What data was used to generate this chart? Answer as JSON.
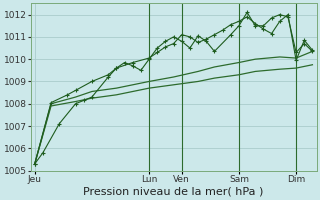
{
  "background_color": "#cce8ea",
  "grid_color": "#aacccc",
  "line_color_dark": "#1e5c1e",
  "line_color_med": "#2d6b2d",
  "ylim": [
    1005,
    1012.5
  ],
  "yticks": [
    1005,
    1006,
    1007,
    1008,
    1009,
    1010,
    1011,
    1012
  ],
  "xlabel": "Pression niveau de la mer( hPa )",
  "xlabel_fontsize": 8,
  "tick_fontsize": 6.5,
  "x_day_labels": [
    "Jeu",
    "Lun",
    "Ven",
    "Sam",
    "Dim"
  ],
  "x_day_positions": [
    0,
    14,
    18,
    25,
    32
  ],
  "vline_positions": [
    14,
    18,
    25,
    32
  ],
  "n_points": 35,
  "series1_x": [
    0,
    1,
    3,
    5,
    6,
    7,
    9,
    10,
    11,
    12,
    13,
    14,
    15,
    16,
    17,
    18,
    19,
    20,
    21,
    22,
    24,
    25,
    26,
    27,
    28,
    29,
    30,
    31,
    32,
    33,
    34
  ],
  "series1_y": [
    1005.3,
    1005.8,
    1007.1,
    1008.0,
    1008.15,
    1008.3,
    1009.2,
    1009.6,
    1009.85,
    1009.7,
    1009.5,
    1010.0,
    1010.5,
    1010.8,
    1011.0,
    1010.8,
    1010.5,
    1011.05,
    1010.8,
    1010.35,
    1011.1,
    1011.5,
    1012.1,
    1011.5,
    1011.5,
    1011.85,
    1012.0,
    1011.9,
    1010.3,
    1010.7,
    1010.35
  ],
  "series2_x": [
    0,
    2,
    4,
    5,
    7,
    9,
    10,
    12,
    14,
    15,
    16,
    17,
    18,
    19,
    20,
    21,
    22,
    23,
    24,
    25,
    26,
    27,
    28,
    29,
    30,
    31,
    32,
    33,
    34
  ],
  "series2_y": [
    1005.3,
    1008.05,
    1008.4,
    1008.6,
    1009.0,
    1009.3,
    1009.6,
    1009.85,
    1010.05,
    1010.3,
    1010.55,
    1010.7,
    1011.1,
    1011.0,
    1010.75,
    1010.9,
    1011.1,
    1011.3,
    1011.55,
    1011.7,
    1011.9,
    1011.6,
    1011.35,
    1011.15,
    1011.7,
    1012.0,
    1009.95,
    1010.85,
    1010.4
  ],
  "series3_x": [
    0,
    2,
    5,
    7,
    10,
    12,
    14,
    17,
    20,
    22,
    25,
    27,
    30,
    32,
    34
  ],
  "series3_y": [
    1005.3,
    1008.0,
    1008.3,
    1008.55,
    1008.7,
    1008.85,
    1009.0,
    1009.2,
    1009.45,
    1009.65,
    1009.85,
    1010.0,
    1010.1,
    1010.05,
    1010.35
  ],
  "series4_x": [
    0,
    2,
    5,
    7,
    10,
    12,
    14,
    17,
    20,
    22,
    25,
    27,
    30,
    32,
    34
  ],
  "series4_y": [
    1005.3,
    1007.9,
    1008.1,
    1008.25,
    1008.4,
    1008.55,
    1008.7,
    1008.85,
    1009.0,
    1009.15,
    1009.3,
    1009.45,
    1009.55,
    1009.6,
    1009.75
  ]
}
